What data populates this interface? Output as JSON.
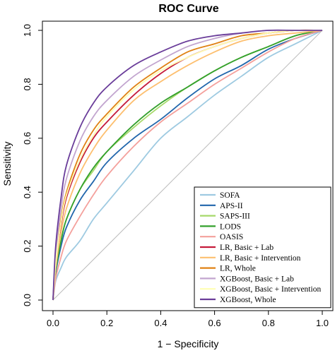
{
  "chart_data": {
    "type": "line",
    "title": "ROC Curve",
    "xlabel": "1 − Specificity",
    "ylabel": "Sensitivity",
    "xlim": [
      0,
      1
    ],
    "ylim": [
      0,
      1
    ],
    "x_ticks": [
      "0.0",
      "0.2",
      "0.4",
      "0.6",
      "0.8",
      "1.0"
    ],
    "y_ticks": [
      "0.0",
      "0.2",
      "0.4",
      "0.6",
      "0.8",
      "1.0"
    ],
    "grid": false,
    "legend_position": "bottom-right",
    "reference_line": {
      "x": [
        0,
        1
      ],
      "y": [
        0,
        1
      ],
      "color": "#bbbbbb"
    },
    "series": [
      {
        "name": "SOFA",
        "color": "#9ecae1",
        "x": [
          0,
          0.01,
          0.03,
          0.05,
          0.1,
          0.15,
          0.2,
          0.3,
          0.4,
          0.5,
          0.6,
          0.7,
          0.8,
          0.9,
          1.0
        ],
        "y": [
          0,
          0.07,
          0.12,
          0.16,
          0.22,
          0.3,
          0.36,
          0.48,
          0.6,
          0.68,
          0.76,
          0.83,
          0.9,
          0.95,
          1.0
        ]
      },
      {
        "name": "APS-II",
        "color": "#2166ac",
        "x": [
          0,
          0.01,
          0.03,
          0.05,
          0.1,
          0.15,
          0.2,
          0.3,
          0.4,
          0.5,
          0.6,
          0.7,
          0.8,
          0.9,
          1.0
        ],
        "y": [
          0,
          0.1,
          0.2,
          0.27,
          0.37,
          0.44,
          0.51,
          0.6,
          0.67,
          0.75,
          0.82,
          0.87,
          0.93,
          0.97,
          1.0
        ]
      },
      {
        "name": "SAPS-III",
        "color": "#a6d96a",
        "x": [
          0,
          0.01,
          0.03,
          0.05,
          0.1,
          0.15,
          0.2,
          0.3,
          0.4,
          0.5,
          0.6,
          0.7,
          0.8,
          0.9,
          1.0
        ],
        "y": [
          0,
          0.11,
          0.22,
          0.3,
          0.41,
          0.48,
          0.55,
          0.64,
          0.72,
          0.79,
          0.85,
          0.9,
          0.94,
          0.98,
          1.0
        ]
      },
      {
        "name": "LODS",
        "color": "#33a02c",
        "x": [
          0,
          0.01,
          0.03,
          0.05,
          0.1,
          0.15,
          0.2,
          0.3,
          0.4,
          0.5,
          0.6,
          0.7,
          0.8,
          0.9,
          1.0
        ],
        "y": [
          0,
          0.11,
          0.22,
          0.3,
          0.41,
          0.49,
          0.55,
          0.65,
          0.73,
          0.79,
          0.85,
          0.9,
          0.94,
          0.98,
          1.0
        ]
      },
      {
        "name": "OASIS",
        "color": "#f4a09c",
        "x": [
          0,
          0.01,
          0.03,
          0.05,
          0.1,
          0.15,
          0.2,
          0.3,
          0.4,
          0.5,
          0.6,
          0.7,
          0.8,
          0.9,
          1.0
        ],
        "y": [
          0,
          0.08,
          0.16,
          0.22,
          0.31,
          0.39,
          0.46,
          0.57,
          0.66,
          0.73,
          0.8,
          0.86,
          0.92,
          0.97,
          1.0
        ]
      },
      {
        "name": "LR, Basic + Lab",
        "color": "#c51b3a",
        "x": [
          0,
          0.01,
          0.03,
          0.05,
          0.1,
          0.15,
          0.2,
          0.3,
          0.4,
          0.5,
          0.6,
          0.7,
          0.8,
          0.9,
          1.0
        ],
        "y": [
          0,
          0.14,
          0.28,
          0.38,
          0.51,
          0.6,
          0.66,
          0.76,
          0.84,
          0.9,
          0.94,
          0.97,
          0.99,
          1.0,
          1.0
        ]
      },
      {
        "name": "LR, Basic + Intervention",
        "color": "#fdbf6f",
        "x": [
          0,
          0.01,
          0.03,
          0.05,
          0.1,
          0.15,
          0.2,
          0.3,
          0.4,
          0.5,
          0.6,
          0.7,
          0.8,
          0.9,
          1.0
        ],
        "y": [
          0,
          0.12,
          0.25,
          0.34,
          0.47,
          0.56,
          0.63,
          0.74,
          0.81,
          0.87,
          0.92,
          0.96,
          0.98,
          0.99,
          1.0
        ]
      },
      {
        "name": "LR, Whole",
        "color": "#e08214",
        "x": [
          0,
          0.01,
          0.03,
          0.05,
          0.1,
          0.15,
          0.2,
          0.3,
          0.4,
          0.5,
          0.6,
          0.7,
          0.8,
          0.9,
          1.0
        ],
        "y": [
          0,
          0.15,
          0.3,
          0.4,
          0.54,
          0.63,
          0.69,
          0.79,
          0.86,
          0.92,
          0.95,
          0.98,
          0.99,
          1.0,
          1.0
        ]
      },
      {
        "name": "XGBoost, Basic + Lab",
        "color": "#c2a5cf",
        "x": [
          0,
          0.01,
          0.03,
          0.05,
          0.1,
          0.15,
          0.2,
          0.3,
          0.4,
          0.5,
          0.6,
          0.7,
          0.8,
          0.9,
          1.0
        ],
        "y": [
          0,
          0.17,
          0.34,
          0.45,
          0.59,
          0.68,
          0.74,
          0.83,
          0.89,
          0.94,
          0.97,
          0.99,
          1.0,
          1.0,
          1.0
        ]
      },
      {
        "name": "XGBoost, Basic + Intervention",
        "color": "#ffffb3",
        "x": [
          0,
          0.01,
          0.03,
          0.05,
          0.1,
          0.15,
          0.2,
          0.3,
          0.4,
          0.5,
          0.6,
          0.7,
          0.8,
          0.9,
          1.0
        ],
        "y": [
          0,
          0.14,
          0.29,
          0.39,
          0.52,
          0.61,
          0.68,
          0.78,
          0.85,
          0.9,
          0.94,
          0.97,
          0.99,
          1.0,
          1.0
        ]
      },
      {
        "name": "XGBoost, Whole",
        "color": "#6a3d9a",
        "x": [
          0,
          0.01,
          0.03,
          0.05,
          0.1,
          0.15,
          0.2,
          0.3,
          0.4,
          0.5,
          0.6,
          0.7,
          0.8,
          0.9,
          1.0
        ],
        "y": [
          0,
          0.2,
          0.38,
          0.5,
          0.64,
          0.73,
          0.79,
          0.87,
          0.92,
          0.96,
          0.98,
          0.99,
          1.0,
          1.0,
          1.0
        ]
      }
    ]
  }
}
